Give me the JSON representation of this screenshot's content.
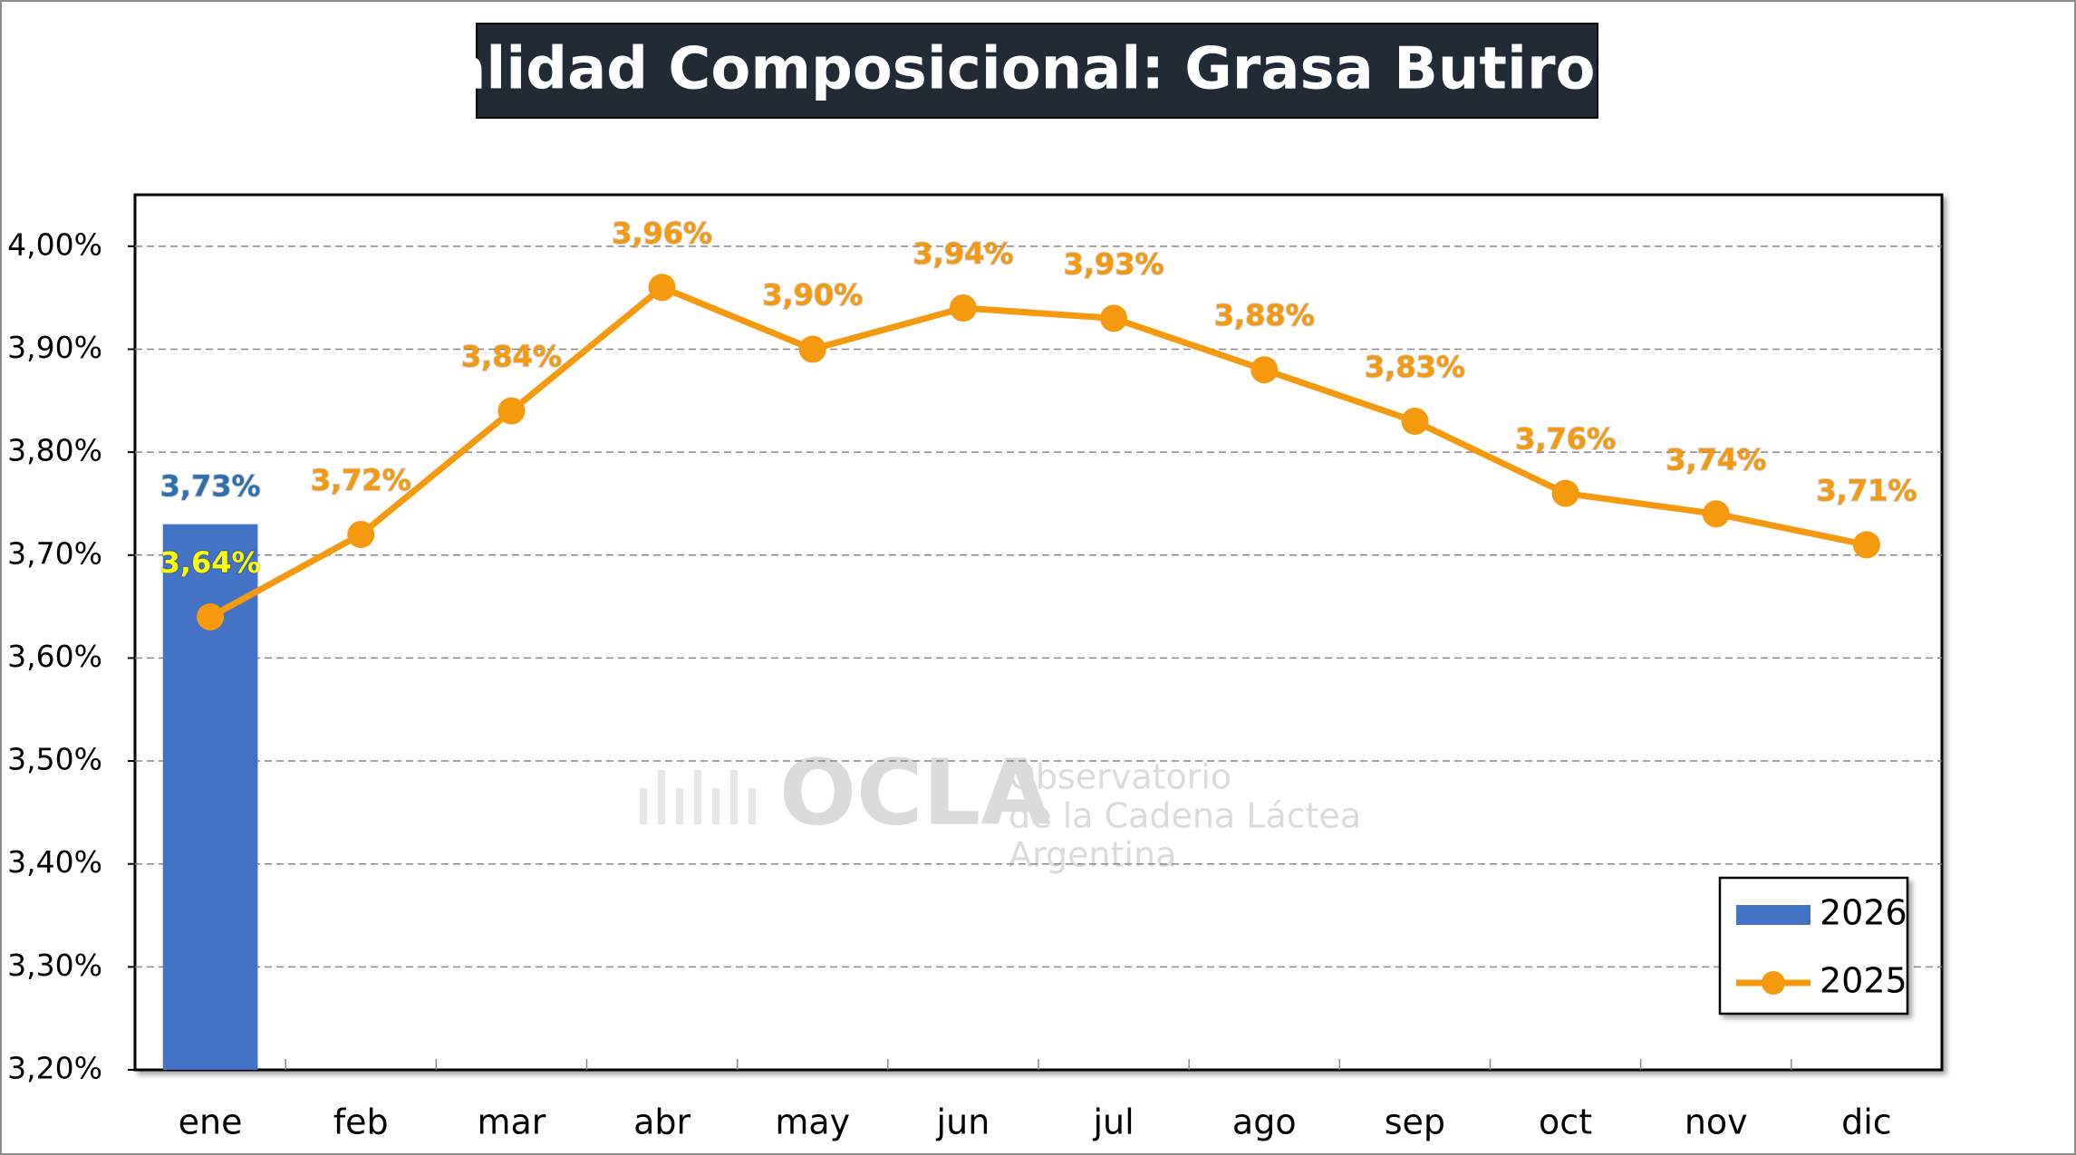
{
  "chart_data": {
    "type": "bar_line",
    "title": "Calidad Composicional: Grasa Butirosa",
    "watermark": {
      "logo": "OCLA",
      "lines": [
        "Observatorio",
        "de la Cadena Láctea",
        "Argentina"
      ]
    },
    "categories": [
      "ene",
      "feb",
      "mar",
      "abr",
      "may",
      "jun",
      "jul",
      "ago",
      "sep",
      "oct",
      "nov",
      "dic"
    ],
    "series": [
      {
        "name": "2026",
        "type": "bar",
        "color": "#4472c4",
        "values": [
          3.73,
          null,
          null,
          null,
          null,
          null,
          null,
          null,
          null,
          null,
          null,
          null
        ],
        "value_labels": [
          "3,73%",
          null,
          null,
          null,
          null,
          null,
          null,
          null,
          null,
          null,
          null,
          null
        ]
      },
      {
        "name": "2025",
        "type": "line",
        "color": "#f59a0e",
        "values": [
          3.64,
          3.72,
          3.84,
          3.96,
          3.9,
          3.94,
          3.93,
          3.88,
          3.83,
          3.76,
          3.74,
          3.71
        ],
        "value_labels": [
          "3,64%",
          "3,72%",
          "3,84%",
          "3,96%",
          "3,90%",
          "3,94%",
          "3,93%",
          "3,88%",
          "3,83%",
          "3,76%",
          "3,74%",
          "3,71%"
        ]
      }
    ],
    "ylim": [
      3.2,
      4.05
    ],
    "yticks": [
      {
        "value": 3.2,
        "label": "3,20%"
      },
      {
        "value": 3.3,
        "label": "3,30%"
      },
      {
        "value": 3.4,
        "label": "3,40%"
      },
      {
        "value": 3.5,
        "label": "3,50%"
      },
      {
        "value": 3.6,
        "label": "3,60%"
      },
      {
        "value": 3.7,
        "label": "3,70%"
      },
      {
        "value": 3.8,
        "label": "3,80%"
      },
      {
        "value": 3.9,
        "label": "3,90%"
      },
      {
        "value": 4.0,
        "label": "4,00%"
      }
    ],
    "grid": true,
    "legend": "bottom-right"
  }
}
